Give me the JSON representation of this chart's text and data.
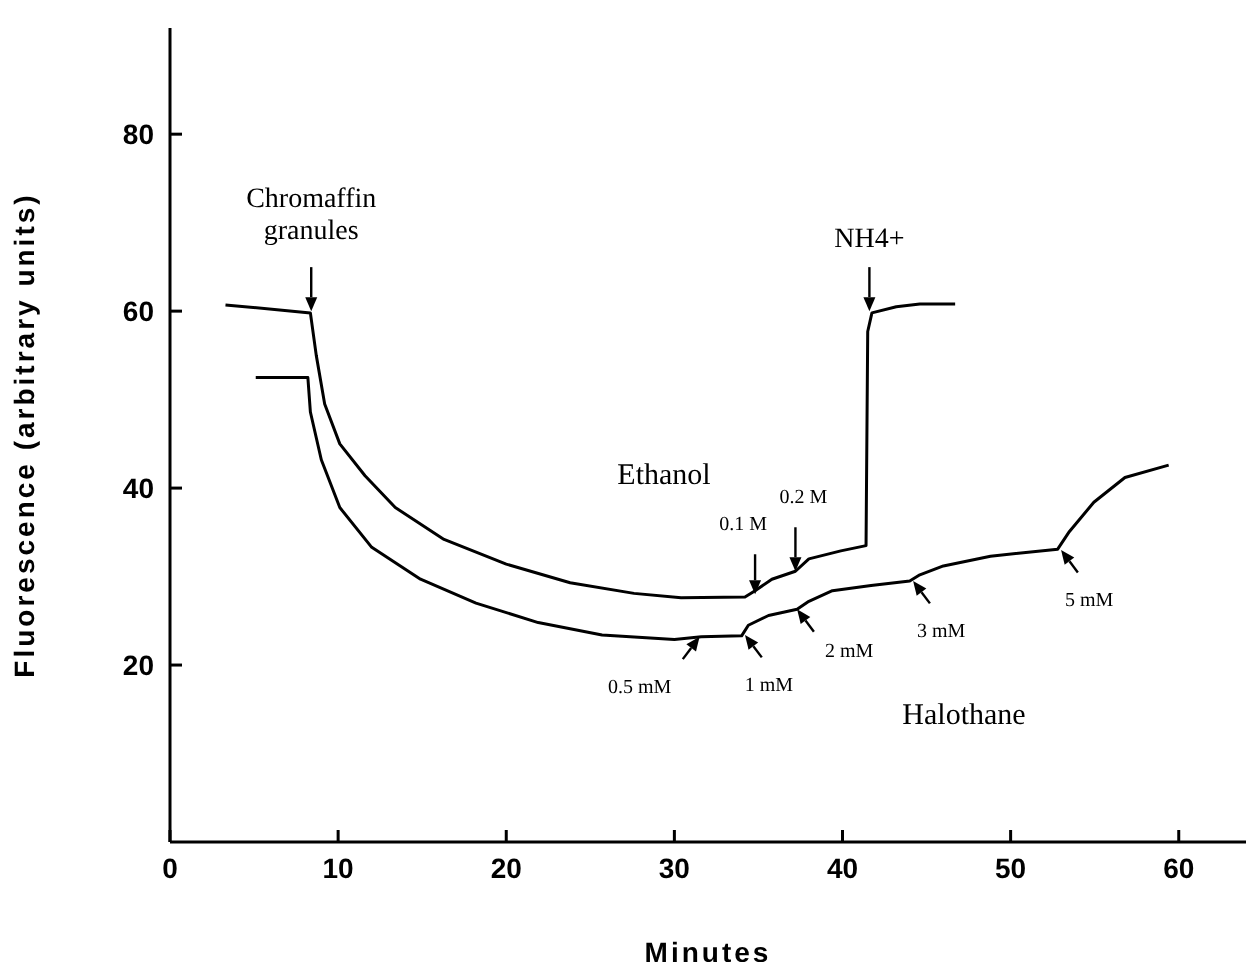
{
  "chart_data": {
    "type": "line",
    "xlabel": "Minutes",
    "ylabel": "Fluorescence (arbitrary units)",
    "xlim": [
      0,
      64
    ],
    "ylim": [
      0,
      92
    ],
    "xticks": [
      0,
      10,
      20,
      30,
      40,
      50,
      60
    ],
    "yticks": [
      20,
      40,
      60,
      80
    ],
    "grid": false,
    "legend": false,
    "marker": "none",
    "line_style": "solid",
    "series": [
      {
        "color": "#000000",
        "x": [
          3.3,
          8.35,
          8.7,
          9.2,
          10.1,
          11.6,
          13.4,
          16.3,
          20,
          23.8,
          27.6,
          30.4,
          34.2,
          34.8,
          35.8,
          37.2,
          38,
          39.9,
          41.4,
          41.5,
          41.75,
          43.2,
          44.6,
          46.7
        ],
        "values": [
          60.7,
          59.8,
          55,
          49.5,
          45,
          41.4,
          37.8,
          34.2,
          31.4,
          29.3,
          28.1,
          27.6,
          27.7,
          28.4,
          29.7,
          30.6,
          32,
          32.9,
          33.5,
          57.7,
          59.8,
          60.5,
          60.8,
          60.8
        ]
      },
      {
        "color": "#000000",
        "x": [
          5.1,
          8.2,
          8.35,
          9,
          10.1,
          12,
          14.9,
          18.2,
          21.9,
          25.7,
          30,
          31.6,
          34,
          34.4,
          35.6,
          37.3,
          38,
          39.4,
          41.7,
          44,
          44.6,
          46,
          48.8,
          52.8,
          53.5,
          54.95,
          56.8,
          59.4
        ],
        "values": [
          52.5,
          52.5,
          48.6,
          43.2,
          37.8,
          33.3,
          29.7,
          27,
          24.8,
          23.4,
          22.9,
          23.2,
          23.3,
          24.5,
          25.6,
          26.3,
          27.2,
          28.4,
          29,
          29.5,
          30.2,
          31.2,
          32.3,
          33.1,
          35.1,
          38.4,
          41.2,
          42.6
        ]
      }
    ],
    "annotations": [
      {
        "text": "Chromaffin granules",
        "x": 8.4,
        "y": 60
      },
      {
        "text": "NH4+",
        "x": 41.6,
        "y": 60
      },
      {
        "text": "0.1 M",
        "x": 34.8,
        "y": 28
      },
      {
        "text": "0.2 M",
        "x": 37.2,
        "y": 30.6
      },
      {
        "text": "0.5 mM",
        "x": 31.5,
        "y": 23.2
      },
      {
        "text": "1 mM",
        "x": 34.2,
        "y": 23.4
      },
      {
        "text": "2 mM",
        "x": 37.3,
        "y": 26.3
      },
      {
        "text": "3 mM",
        "x": 44.2,
        "y": 29.5
      },
      {
        "text": "5 mM",
        "x": 53,
        "y": 33
      },
      "Ethanol",
      "Halothane"
    ]
  }
}
